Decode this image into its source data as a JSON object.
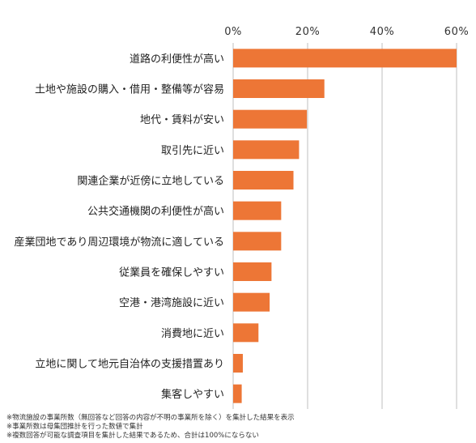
{
  "chart_data": {
    "type": "bar",
    "orientation": "horizontal",
    "categories": [
      "道路の利便性が高い",
      "土地や施設の購入・借用・整備等が容易",
      "地代・賃料が安い",
      "取引先に近い",
      "関連企業が近傍に立地している",
      "公共交通機関の利便性が高い",
      "産業団地であり周辺環境が物流に適している",
      "従業員を確保しやすい",
      "空港・港湾施設に近い",
      "消費地に近い",
      "立地に関して地元自治体の支援措置あり",
      "集客しやすい"
    ],
    "values": [
      60,
      24.5,
      19.8,
      17.7,
      16.2,
      12.9,
      12.9,
      10.3,
      9.8,
      6.8,
      2.6,
      2.3
    ],
    "xlim": [
      0,
      60
    ],
    "xticks": [
      "0%",
      "20%",
      "40%",
      "60%"
    ],
    "xtick_values": [
      0,
      20,
      40,
      60
    ],
    "bar_color": "#ED7636",
    "gridlines": "vertical",
    "title": "",
    "xlabel": "",
    "ylabel": ""
  },
  "notes": [
    "※物流施設の事業所数（無回答など回答の内容が不明の事業所を除く）を集計した結果を表示",
    "※事業所数は母集団推計を行った数値で集計",
    "※複数回答が可能な調査項目を集計した結果であるため、合計は100%にならない"
  ]
}
